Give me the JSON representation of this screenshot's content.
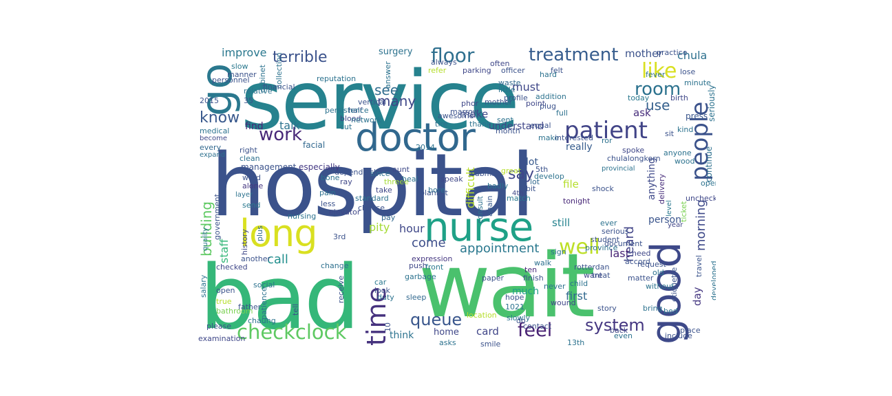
{
  "colors": {
    "viridis_dark": "#440154",
    "viridis_purple": "#482878",
    "viridis_blue": "#3b528b",
    "viridis_steel": "#31688e",
    "viridis_teal": "#26828e",
    "viridis_green": "#1f9e89",
    "viridis_seagreen": "#35b779",
    "viridis_lightgreen": "#6ece58",
    "viridis_lime": "#b5de2b",
    "viridis_yellow": "#d9e021"
  },
  "words": [
    {
      "text": "service",
      "color": "#26828e"
    },
    {
      "text": "hospital",
      "color": "#3b528b"
    },
    {
      "text": "bad",
      "color": "#35b779"
    },
    {
      "text": "wait",
      "color": "#4ac16d"
    },
    {
      "text": "doctor",
      "color": "#31688e"
    },
    {
      "text": "nurse",
      "color": "#1fa187"
    },
    {
      "text": "long",
      "color": "#d9e021"
    },
    {
      "text": "go",
      "color": "#2a788e"
    },
    {
      "text": "good",
      "color": "#3e4989"
    },
    {
      "text": "time",
      "color": "#46327e"
    },
    {
      "text": "patient",
      "color": "#414487"
    },
    {
      "text": "people",
      "color": "#3b528b"
    },
    {
      "text": "checkclock",
      "color": "#5ec962"
    },
    {
      "text": "work",
      "color": "#482878"
    },
    {
      "text": "treatment",
      "color": "#365c8d"
    },
    {
      "text": "floor",
      "color": "#2e6f8e"
    },
    {
      "text": "room",
      "color": "#2c728e"
    },
    {
      "text": "like",
      "color": "#d9e021"
    },
    {
      "text": "feel",
      "color": "#482173"
    },
    {
      "text": "well",
      "color": "#bddf26"
    },
    {
      "text": "queue",
      "color": "#39568c"
    },
    {
      "text": "system",
      "color": "#453781"
    },
    {
      "text": "terrible",
      "color": "#3b528b"
    },
    {
      "text": "know",
      "color": "#38588c"
    },
    {
      "text": "many",
      "color": "#3f4788"
    },
    {
      "text": "see",
      "color": "#2f6c8e"
    },
    {
      "text": "use",
      "color": "#35608d"
    },
    {
      "text": "say",
      "color": "#404688"
    },
    {
      "text": "building",
      "color": "#5ec962"
    },
    {
      "text": "staff",
      "color": "#35b779"
    },
    {
      "text": "call",
      "color": "#218f8d"
    },
    {
      "text": "appointment",
      "color": "#2a788e"
    },
    {
      "text": "come",
      "color": "#3d4e8a"
    },
    {
      "text": "difficult",
      "color": "#b8de29"
    },
    {
      "text": "morning",
      "color": "#3e4989"
    },
    {
      "text": "heard",
      "color": "#414487"
    },
    {
      "text": "first",
      "color": "#31688e"
    },
    {
      "text": "much",
      "color": "#1f9e89"
    },
    {
      "text": "pity",
      "color": "#a5db36"
    },
    {
      "text": "hour",
      "color": "#3f4788"
    },
    {
      "text": "talk",
      "color": "#2c728e"
    },
    {
      "text": "find",
      "color": "#482878"
    },
    {
      "text": "improve",
      "color": "#2a788e"
    },
    {
      "text": "mother",
      "color": "#3b528b"
    },
    {
      "text": "chula",
      "color": "#2d708e"
    },
    {
      "text": "understand",
      "color": "#404688"
    },
    {
      "text": "make",
      "color": "#3e4989"
    },
    {
      "text": "must",
      "color": "#3f4788"
    },
    {
      "text": "really",
      "color": "#365c8d"
    },
    {
      "text": "ask",
      "color": "#472d7b"
    },
    {
      "text": "still",
      "color": "#25838e"
    },
    {
      "text": "person",
      "color": "#3a548c"
    },
    {
      "text": "last",
      "color": "#482475"
    },
    {
      "text": "card",
      "color": "#404688"
    },
    {
      "text": "think",
      "color": "#2c728e"
    },
    {
      "text": "home",
      "color": "#3f4788"
    },
    {
      "text": "file",
      "color": "#b5de2b"
    },
    {
      "text": "lot",
      "color": "#38598c"
    },
    {
      "text": "surgery",
      "color": "#2c728e"
    },
    {
      "text": "anything",
      "color": "#3e4989"
    },
    {
      "text": "day",
      "color": "#453781"
    },
    {
      "text": "continue",
      "color": "#2d708e"
    },
    {
      "text": "chulalongkorn",
      "color": "#3b528b"
    },
    {
      "text": "travel",
      "color": "#3a548c"
    },
    {
      "text": "seriously",
      "color": "#2c728e"
    },
    {
      "text": "today",
      "color": "#2a788e"
    },
    {
      "text": "spoke",
      "color": "#3f4788"
    },
    {
      "text": "press",
      "color": "#39568c"
    },
    {
      "text": "kind",
      "color": "#2c728e"
    },
    {
      "text": "ticket",
      "color": "#7ad151"
    },
    {
      "text": "year",
      "color": "#404688"
    },
    {
      "text": "delivery",
      "color": "#472d7b"
    },
    {
      "text": "level",
      "color": "#2a788e"
    },
    {
      "text": "tonight",
      "color": "#482878"
    },
    {
      "text": "again",
      "color": "#38598c"
    },
    {
      "text": "consult",
      "color": "#2e6f8e"
    },
    {
      "text": "bit",
      "color": "#3b528b"
    },
    {
      "text": "match",
      "color": "#2a788e"
    },
    {
      "text": "provincial",
      "color": "#2c728e"
    },
    {
      "text": "4th",
      "color": "#3f4788"
    },
    {
      "text": "management",
      "color": "#3b528b"
    },
    {
      "text": "especially",
      "color": "#443983"
    },
    {
      "text": "right",
      "color": "#3b528b"
    },
    {
      "text": "clean",
      "color": "#2d708e"
    },
    {
      "text": "facial",
      "color": "#31688e"
    },
    {
      "text": "depend",
      "color": "#3b528b"
    },
    {
      "text": "since",
      "color": "#2d708e"
    },
    {
      "text": "aunt",
      "color": "#3e4989"
    },
    {
      "text": "medical",
      "color": "#2c728e"
    },
    {
      "text": "every",
      "color": "#31688e"
    },
    {
      "text": "expand",
      "color": "#2d708e"
    },
    {
      "text": "become",
      "color": "#3f4788"
    },
    {
      "text": "alone",
      "color": "#453781"
    },
    {
      "text": "word",
      "color": "#3b528b"
    },
    {
      "text": "layer",
      "color": "#2c728e"
    },
    {
      "text": "send",
      "color": "#2a788e"
    },
    {
      "text": "history",
      "color": "#3f4788"
    },
    {
      "text": "plus",
      "color": "#31688e"
    },
    {
      "text": "government",
      "color": "#3b528b"
    },
    {
      "text": "quality",
      "color": "#2c728e"
    },
    {
      "text": "another",
      "color": "#3b528b"
    },
    {
      "text": "checked",
      "color": "#3f4788"
    },
    {
      "text": "social",
      "color": "#2c728e"
    },
    {
      "text": "open",
      "color": "#3b528b"
    },
    {
      "text": "true",
      "color": "#b5de2b"
    },
    {
      "text": "bathroom",
      "color": "#7ad151"
    },
    {
      "text": "salary",
      "color": "#2c728e"
    },
    {
      "text": "please",
      "color": "#3b528b"
    },
    {
      "text": "examination",
      "color": "#3f4788"
    },
    {
      "text": "patience",
      "color": "#2c728e"
    },
    {
      "text": "tell",
      "color": "#3b528b"
    },
    {
      "text": "change",
      "color": "#2d708e"
    },
    {
      "text": "receive",
      "color": "#3b528b"
    },
    {
      "text": "expression",
      "color": "#453781"
    },
    {
      "text": "push",
      "color": "#3f4788"
    },
    {
      "text": "garbage",
      "color": "#2c728e"
    },
    {
      "text": "car",
      "color": "#2a788e"
    },
    {
      "text": "look",
      "color": "#3b528b"
    },
    {
      "text": "sleep",
      "color": "#31688e"
    },
    {
      "text": "slowly",
      "color": "#2c728e"
    },
    {
      "text": "contact",
      "color": "#3b528b"
    },
    {
      "text": "wound",
      "color": "#3f4788"
    },
    {
      "text": "never",
      "color": "#2c728e"
    },
    {
      "text": "finish",
      "color": "#3b528b"
    },
    {
      "text": "ten",
      "color": "#482878"
    },
    {
      "text": "walk",
      "color": "#2d708e"
    },
    {
      "text": "paper",
      "color": "#3b528b"
    },
    {
      "text": "pay",
      "color": "#31688e"
    },
    {
      "text": "elevator",
      "color": "#3f4788"
    },
    {
      "text": "nursing",
      "color": "#2c728e"
    },
    {
      "text": "3rd",
      "color": "#3b528b"
    },
    {
      "text": "front",
      "color": "#2a788e"
    },
    {
      "text": "choose",
      "color": "#3b528b"
    },
    {
      "text": "standard",
      "color": "#2c728e"
    },
    {
      "text": "ray",
      "color": "#3f4788"
    },
    {
      "text": "pain",
      "color": "#2d708e"
    },
    {
      "text": "less",
      "color": "#3b528b"
    },
    {
      "text": "bone",
      "color": "#2c728e"
    },
    {
      "text": "sick",
      "color": "#3b528b"
    },
    {
      "text": "threee",
      "color": "#a5db36"
    },
    {
      "text": "take",
      "color": "#3f4788"
    },
    {
      "text": "heal",
      "color": "#2c728e"
    },
    {
      "text": "blanket",
      "color": "#3b528b"
    },
    {
      "text": "bore",
      "color": "#2d708e"
    },
    {
      "text": "speak",
      "color": "#3f4788"
    },
    {
      "text": "submit",
      "color": "#3b528b"
    },
    {
      "text": "lot",
      "color": "#31688e"
    },
    {
      "text": "badly",
      "color": "#2c728e"
    },
    {
      "text": "great",
      "color": "#b5de2b"
    },
    {
      "text": "awesome",
      "color": "#3b528b"
    },
    {
      "text": "tire",
      "color": "#2c728e"
    },
    {
      "text": "blood",
      "color": "#3f4788"
    },
    {
      "text": "cut",
      "color": "#2d708e"
    },
    {
      "text": "half",
      "color": "#3b528b"
    },
    {
      "text": "thank",
      "color": "#2c728e"
    },
    {
      "text": "marrow",
      "color": "#3b528b"
    },
    {
      "text": "parking",
      "color": "#3f4788"
    },
    {
      "text": "relative",
      "color": "#2c728e"
    },
    {
      "text": "35",
      "color": "#3b528b"
    },
    {
      "text": "slow",
      "color": "#2a788e"
    },
    {
      "text": "manner",
      "color": "#3b528b"
    },
    {
      "text": "cabinet",
      "color": "#2c728e"
    },
    {
      "text": "officer",
      "color": "#3b528b"
    },
    {
      "text": "waste",
      "color": "#31688e"
    },
    {
      "text": "little",
      "color": "#2c728e"
    },
    {
      "text": "profile",
      "color": "#3b528b"
    },
    {
      "text": "point",
      "color": "#3f4788"
    },
    {
      "text": "addition",
      "color": "#2c728e"
    },
    {
      "text": "plug",
      "color": "#3b528b"
    },
    {
      "text": "full",
      "color": "#2d708e"
    },
    {
      "text": "felt",
      "color": "#3b528b"
    },
    {
      "text": "hard",
      "color": "#2c728e"
    },
    {
      "text": "often",
      "color": "#3f4788"
    },
    {
      "text": "refer",
      "color": "#b5de2b"
    },
    {
      "text": "always",
      "color": "#3b528b"
    },
    {
      "text": "answer",
      "color": "#2c728e"
    },
    {
      "text": "vertical",
      "color": "#3b528b"
    },
    {
      "text": "phor",
      "color": "#3f4788"
    },
    {
      "text": "make",
      "color": "#2c728e"
    },
    {
      "text": "month",
      "color": "#3b528b"
    },
    {
      "text": "sent",
      "color": "#2c728e"
    },
    {
      "text": "equal",
      "color": "#3b528b"
    },
    {
      "text": "birth",
      "color": "#3f4788"
    },
    {
      "text": "fever",
      "color": "#2c728e"
    },
    {
      "text": "lose",
      "color": "#3b528b"
    },
    {
      "text": "minute",
      "color": "#2c728e"
    },
    {
      "text": "accord",
      "color": "#3b528b"
    },
    {
      "text": "document",
      "color": "#3b528b"
    },
    {
      "text": "province",
      "color": "#2c728e"
    },
    {
      "text": "student",
      "color": "#3b528b"
    },
    {
      "text": "ever",
      "color": "#2c728e"
    },
    {
      "text": "need",
      "color": "#3f4788"
    },
    {
      "text": "request",
      "color": "#3b528b"
    },
    {
      "text": "old",
      "color": "#2c728e"
    },
    {
      "text": "rotterdan",
      "color": "#3b528b"
    },
    {
      "text": "want",
      "color": "#3f4788"
    },
    {
      "text": "child",
      "color": "#2c728e"
    },
    {
      "text": "matter",
      "color": "#3b528b"
    },
    {
      "text": "without",
      "color": "#2c728e"
    },
    {
      "text": "story",
      "color": "#3b528b"
    },
    {
      "text": "back",
      "color": "#3f4788"
    },
    {
      "text": "even",
      "color": "#2c728e"
    },
    {
      "text": "include",
      "color": "#3b528b"
    },
    {
      "text": "bring",
      "color": "#2c728e"
    },
    {
      "text": "etiquette",
      "color": "#3b528b"
    },
    {
      "text": "developed",
      "color": "#2c728e"
    },
    {
      "text": "unchecked",
      "color": "#3f4788"
    },
    {
      "text": "operation",
      "color": "#2c728e"
    },
    {
      "text": "treat",
      "color": "#3b528b"
    },
    {
      "text": "bed",
      "color": "#2c728e"
    },
    {
      "text": "hope",
      "color": "#3b528b"
    },
    {
      "text": "1021",
      "color": "#2c728e"
    },
    {
      "text": "10",
      "color": "#3b528b"
    },
    {
      "text": "duty",
      "color": "#2c728e"
    },
    {
      "text": "location",
      "color": "#b5de2b"
    },
    {
      "text": "smile",
      "color": "#3b528b"
    },
    {
      "text": "chaung",
      "color": "#2c728e"
    },
    {
      "text": "father",
      "color": "#3b528b"
    },
    {
      "text": "13th",
      "color": "#2c728e"
    },
    {
      "text": "place",
      "color": "#3b528b"
    },
    {
      "text": "asks",
      "color": "#2c728e"
    },
    {
      "text": "do",
      "color": "#3b528b"
    },
    {
      "text": "reputation",
      "color": "#2c728e"
    },
    {
      "text": "practice",
      "color": "#3b528b"
    },
    {
      "text": "network",
      "color": "#2c728e"
    },
    {
      "text": "mother",
      "color": "#3b528b"
    },
    {
      "text": "collection",
      "color": "#2c728e"
    },
    {
      "text": "financial",
      "color": "#3b528b"
    },
    {
      "text": "persistence",
      "color": "#2c728e"
    },
    {
      "text": "2015",
      "color": "#3b528b"
    },
    {
      "text": "2014",
      "color": "#2c728e"
    },
    {
      "text": "interested",
      "color": "#3b528b"
    },
    {
      "text": "develop",
      "color": "#2c728e"
    },
    {
      "text": "shock",
      "color": "#3b528b"
    },
    {
      "text": "ror",
      "color": "#2c728e"
    },
    {
      "text": "sit",
      "color": "#3b528b"
    },
    {
      "text": "wood",
      "color": "#2c728e"
    },
    {
      "text": "5th",
      "color": "#3b528b"
    },
    {
      "text": "sign",
      "color": "#2c728e"
    },
    {
      "text": "personnel",
      "color": "#3b528b"
    },
    {
      "text": "anyone",
      "color": "#2c728e"
    },
    {
      "text": "serious",
      "color": "#3b528b"
    },
    {
      "text": "already",
      "color": "#2c728e"
    }
  ]
}
